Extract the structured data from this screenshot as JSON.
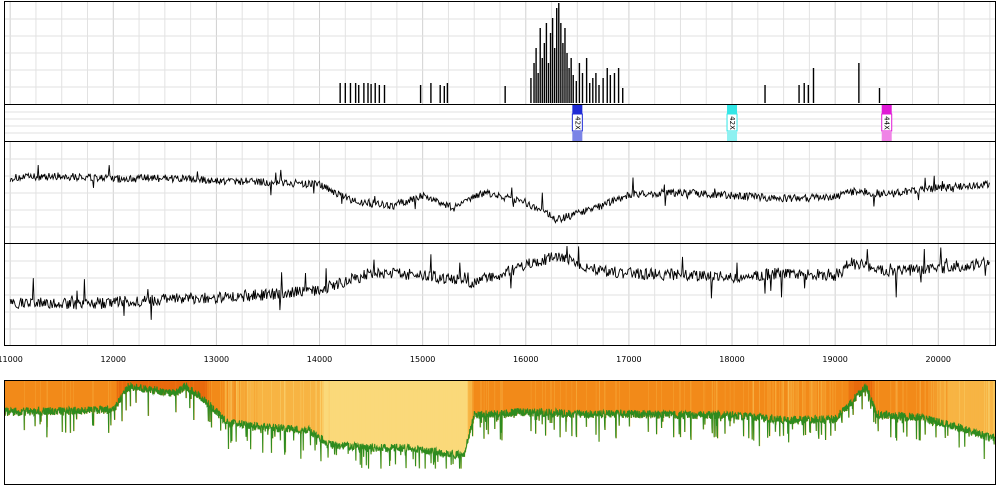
{
  "chart_data": [
    {
      "type": "bar",
      "x_range": [
        10950,
        20550
      ],
      "y_range": [
        0,
        100
      ],
      "grid": true,
      "bars": [
        {
          "x": 14200,
          "h": 20
        },
        {
          "x": 14250,
          "h": 20
        },
        {
          "x": 14300,
          "h": 20
        },
        {
          "x": 14350,
          "h": 20
        },
        {
          "x": 14380,
          "h": 18
        },
        {
          "x": 14430,
          "h": 20
        },
        {
          "x": 14470,
          "h": 20
        },
        {
          "x": 14500,
          "h": 19
        },
        {
          "x": 14540,
          "h": 20
        },
        {
          "x": 14580,
          "h": 18
        },
        {
          "x": 14630,
          "h": 18
        },
        {
          "x": 14980,
          "h": 18
        },
        {
          "x": 15080,
          "h": 20
        },
        {
          "x": 15170,
          "h": 18
        },
        {
          "x": 15210,
          "h": 17
        },
        {
          "x": 15240,
          "h": 20
        },
        {
          "x": 15800,
          "h": 17
        },
        {
          "x": 16050,
          "h": 25
        },
        {
          "x": 16080,
          "h": 40
        },
        {
          "x": 16100,
          "h": 55
        },
        {
          "x": 16120,
          "h": 30
        },
        {
          "x": 16140,
          "h": 75
        },
        {
          "x": 16160,
          "h": 45
        },
        {
          "x": 16180,
          "h": 60
        },
        {
          "x": 16200,
          "h": 80
        },
        {
          "x": 16220,
          "h": 40
        },
        {
          "x": 16240,
          "h": 70
        },
        {
          "x": 16260,
          "h": 85
        },
        {
          "x": 16280,
          "h": 55
        },
        {
          "x": 16300,
          "h": 95
        },
        {
          "x": 16320,
          "h": 100
        },
        {
          "x": 16340,
          "h": 80
        },
        {
          "x": 16360,
          "h": 60
        },
        {
          "x": 16380,
          "h": 75
        },
        {
          "x": 16400,
          "h": 50
        },
        {
          "x": 16420,
          "h": 35
        },
        {
          "x": 16440,
          "h": 45
        },
        {
          "x": 16460,
          "h": 28
        },
        {
          "x": 16490,
          "h": 22
        },
        {
          "x": 16520,
          "h": 40
        },
        {
          "x": 16550,
          "h": 30
        },
        {
          "x": 16590,
          "h": 45
        },
        {
          "x": 16620,
          "h": 20
        },
        {
          "x": 16650,
          "h": 25
        },
        {
          "x": 16680,
          "h": 30
        },
        {
          "x": 16710,
          "h": 18
        },
        {
          "x": 16750,
          "h": 25
        },
        {
          "x": 16790,
          "h": 35
        },
        {
          "x": 16820,
          "h": 28
        },
        {
          "x": 16860,
          "h": 30
        },
        {
          "x": 16900,
          "h": 35
        },
        {
          "x": 16940,
          "h": 15
        },
        {
          "x": 18320,
          "h": 18
        },
        {
          "x": 18650,
          "h": 18
        },
        {
          "x": 18700,
          "h": 20
        },
        {
          "x": 18740,
          "h": 18
        },
        {
          "x": 18790,
          "h": 35
        },
        {
          "x": 19230,
          "h": 40
        },
        {
          "x": 19430,
          "h": 15
        }
      ]
    },
    {
      "type": "annotation-track",
      "x_range": [
        10950,
        20550
      ],
      "markers": [
        {
          "x": 16500,
          "label": "42X",
          "color_top": "#1f2bd6",
          "color_bottom": "#7b84e6"
        },
        {
          "x": 18000,
          "label": "42X",
          "color_top": "#33e6e6",
          "color_bottom": "#8ef1f1"
        },
        {
          "x": 19500,
          "label": "44X",
          "color_top": "#e01ad6",
          "color_bottom": "#ef84e6"
        }
      ]
    },
    {
      "type": "line",
      "x_range": [
        10950,
        20550
      ],
      "y_range": [
        0,
        100
      ],
      "grid": true,
      "x": [
        11000,
        11500,
        12000,
        12500,
        13000,
        13500,
        14000,
        14300,
        14700,
        15000,
        15300,
        15600,
        16000,
        16300,
        16700,
        17000,
        17500,
        18000,
        18500,
        19000,
        19200,
        19500,
        20000,
        20500
      ],
      "y": [
        65,
        67,
        64,
        65,
        62,
        61,
        58,
        42,
        36,
        47,
        34,
        50,
        40,
        22,
        35,
        48,
        50,
        47,
        44,
        45,
        52,
        48,
        55,
        58
      ]
    },
    {
      "type": "line",
      "x_range": [
        10950,
        20550
      ],
      "y_range": [
        0,
        100
      ],
      "grid": true,
      "x": [
        11000,
        11500,
        12000,
        12500,
        13000,
        13500,
        14000,
        14500,
        15000,
        15500,
        16000,
        16300,
        16700,
        17000,
        17500,
        18000,
        18500,
        19000,
        19200,
        19500,
        20000,
        20500
      ],
      "y": [
        42,
        40,
        42,
        45,
        47,
        50,
        55,
        72,
        70,
        62,
        80,
        90,
        75,
        72,
        70,
        68,
        72,
        70,
        82,
        74,
        77,
        83
      ]
    },
    {
      "type": "axis",
      "x_range": [
        10950,
        20550
      ],
      "ticks": [
        11000,
        12000,
        13000,
        14000,
        15000,
        16000,
        17000,
        18000,
        19000,
        20000
      ],
      "tick_labels": [
        "11000",
        "12000",
        "13000",
        "14000",
        "15000",
        "16000",
        "17000",
        "18000",
        "19000",
        "20000"
      ]
    },
    {
      "type": "area",
      "x_range": [
        10950,
        20550
      ],
      "y_range": [
        0,
        100
      ],
      "x": [
        11000,
        11500,
        12000,
        12150,
        12600,
        12700,
        12900,
        13100,
        13500,
        13900,
        14100,
        14500,
        14900,
        15200,
        15400,
        15500,
        16000,
        16500,
        17000,
        17500,
        18000,
        18500,
        19000,
        19300,
        19400,
        19800,
        20200,
        20500
      ],
      "y": [
        70,
        71,
        72,
        95,
        88,
        95,
        80,
        60,
        55,
        52,
        38,
        35,
        35,
        30,
        28,
        67,
        70,
        68,
        68,
        67,
        67,
        62,
        63,
        95,
        68,
        65,
        55,
        45
      ],
      "color_stops": [
        "#e86a0e",
        "#f28a1a",
        "#f7b544",
        "#fbd97a"
      ],
      "line_color": "#2e8b1f"
    }
  ]
}
